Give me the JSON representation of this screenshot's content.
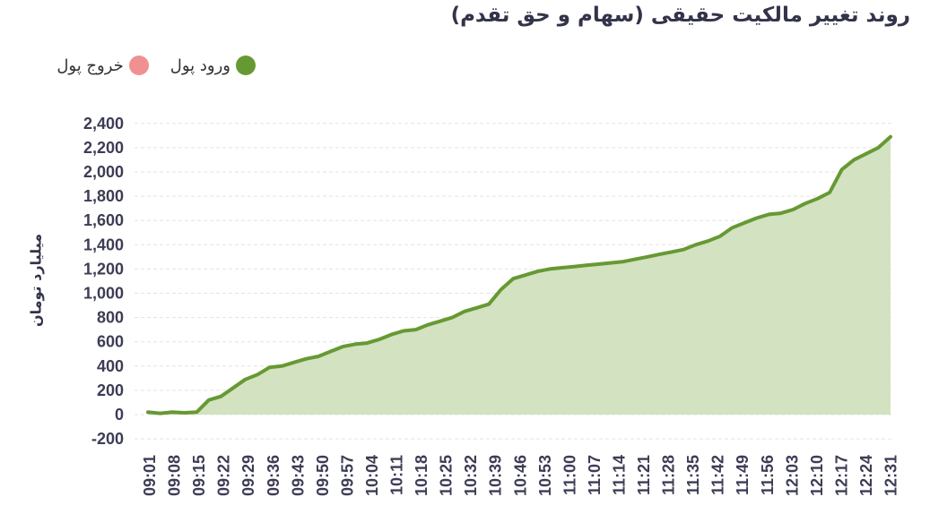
{
  "chart_data": {
    "type": "area",
    "title": "روند تغییر مالکیت حقیقی (سهام و حق تقدم)",
    "ylabel": "میلیارد تومان",
    "xlabel": "",
    "ylim": [
      -200,
      2400
    ],
    "yticks": [
      "2,400",
      "2,200",
      "2,000",
      "1,800",
      "1,600",
      "1,400",
      "1,200",
      "1,000",
      "800",
      "600",
      "400",
      "200",
      "0",
      "-200"
    ],
    "ytick_values": [
      2400,
      2200,
      2000,
      1800,
      1600,
      1400,
      1200,
      1000,
      800,
      600,
      400,
      200,
      0,
      -200
    ],
    "xticks": [
      "09:01",
      "09:08",
      "09:15",
      "09:22",
      "09:29",
      "09:36",
      "09:43",
      "09:50",
      "09:57",
      "10:04",
      "10:11",
      "10:18",
      "10:25",
      "10:32",
      "10:39",
      "10:46",
      "10:53",
      "11:00",
      "11:07",
      "11:14",
      "11:21",
      "11:28",
      "11:35",
      "11:42",
      "11:49",
      "11:56",
      "12:03",
      "12:10",
      "12:17",
      "12:24",
      "12:31"
    ],
    "grid": true,
    "legend_position": "top-left",
    "series": [
      {
        "name": "ورود پول",
        "color": "#669933",
        "fill": "#d3e2c0",
        "values": [
          20,
          10,
          20,
          15,
          20,
          120,
          150,
          220,
          290,
          330,
          390,
          400,
          430,
          460,
          480,
          520,
          560,
          580,
          590,
          620,
          660,
          690,
          700,
          740,
          770,
          800,
          850,
          880,
          910,
          1030,
          1120,
          1150,
          1180,
          1200,
          1210,
          1220,
          1230,
          1240,
          1250,
          1260,
          1280,
          1300,
          1320,
          1340,
          1360,
          1400,
          1430,
          1470,
          1540,
          1580,
          1620,
          1650,
          1660,
          1690,
          1740,
          1780,
          1830,
          2020,
          2100,
          2150,
          2200,
          2290
        ]
      },
      {
        "name": "خروج پول",
        "color": "#f09090",
        "values": []
      }
    ]
  }
}
